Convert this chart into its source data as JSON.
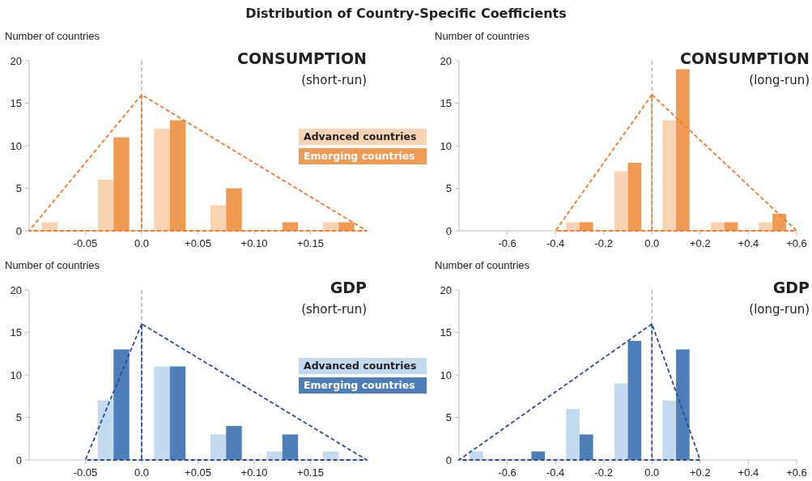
{
  "chart_data": [
    {
      "type": "bar",
      "title": "CONSUMPTION",
      "subtitle": "(short-run)",
      "ylabel": "Number of countries",
      "annotations": [
        "Distribution of Country-Specific Coefficients"
      ],
      "xlim": [
        -0.1,
        0.2
      ],
      "xticks": [
        -0.05,
        {
          "value": 0,
          "label": "0.0"
        },
        {
          "value": 0.05,
          "label": "+0.05"
        },
        {
          "value": 0.1,
          "label": "+0.10"
        },
        {
          "value": 0.15,
          "label": "+0.15"
        }
      ],
      "ylim": [
        0,
        20
      ],
      "yticks": [
        0,
        5,
        10,
        15,
        20
      ],
      "grid": false,
      "legend": "right",
      "ref_lines": [
        {
          "axis": "x",
          "value": 0,
          "color": "#a6a6a6",
          "line_style": "dashed"
        }
      ],
      "series": [
        {
          "name": "Advanced countries",
          "color": "#f9d3b2",
          "x": [
            -0.082,
            -0.032,
            0.018,
            0.068,
            0.168
          ],
          "values": [
            1,
            6,
            12,
            3,
            1
          ]
        },
        {
          "name": "Emerging countries",
          "color": "#ef9a55",
          "x": [
            -0.018,
            0.032,
            0.082,
            0.132,
            0.182
          ],
          "values": [
            11,
            13,
            5,
            1,
            1
          ]
        },
        {
          "type": "line",
          "color": "#f07a30",
          "line_style": "dashed",
          "marker": "none",
          "x": [
            0,
            -0.1,
            0.2,
            0,
            0
          ],
          "values": [
            16,
            0,
            0,
            16,
            0
          ]
        }
      ]
    },
    {
      "type": "bar",
      "title": "CONSUMPTION",
      "subtitle": "(long-run)",
      "ylabel": "Number of countries",
      "xlim": [
        -0.8,
        0.6
      ],
      "xticks": [
        -0.6,
        -0.4,
        -0.2,
        {
          "value": 0,
          "label": "0.0"
        },
        {
          "value": 0.2,
          "label": "+0.2"
        },
        {
          "value": 0.4,
          "label": "+0.4"
        },
        {
          "value": 0.6,
          "label": "+0.6"
        }
      ],
      "ylim": [
        0,
        20
      ],
      "yticks": [
        0,
        5,
        10,
        15,
        20
      ],
      "grid": false,
      "ref_lines": [
        {
          "axis": "x",
          "value": 0,
          "color": "#a6a6a6",
          "line_style": "dashed"
        }
      ],
      "series": [
        {
          "color": "#f9d3b2",
          "x": [
            -0.328,
            -0.128,
            0.072,
            0.272,
            0.472
          ],
          "values": [
            1,
            7,
            13,
            1,
            1
          ]
        },
        {
          "color": "#ef9a55",
          "x": [
            -0.272,
            -0.072,
            0.128,
            0.328,
            0.528
          ],
          "values": [
            1,
            8,
            19,
            1,
            2
          ]
        },
        {
          "type": "line",
          "color": "#f07a30",
          "line_style": "dashed",
          "marker": "none",
          "x": [
            0,
            -0.4,
            0.6,
            0,
            0
          ],
          "values": [
            16,
            0,
            0,
            16,
            0
          ]
        }
      ]
    },
    {
      "type": "bar",
      "title": "GDP",
      "subtitle": "(short-run)",
      "ylabel": "Number of countries",
      "xlim": [
        -0.1,
        0.2
      ],
      "xticks": [
        -0.05,
        {
          "value": 0,
          "label": "0.0"
        },
        {
          "value": 0.05,
          "label": "+0.05"
        },
        {
          "value": 0.1,
          "label": "+0.10"
        },
        {
          "value": 0.15,
          "label": "+0.15"
        }
      ],
      "ylim": [
        0,
        20
      ],
      "yticks": [
        0,
        5,
        10,
        15,
        20
      ],
      "grid": false,
      "legend": "right",
      "ref_lines": [
        {
          "axis": "x",
          "value": 0,
          "color": "#a6a6a6",
          "line_style": "dashed"
        }
      ],
      "series": [
        {
          "name": "Advanced countries",
          "color": "#c5d9ef",
          "x": [
            -0.032,
            0.018,
            0.068,
            0.118,
            0.168
          ],
          "values": [
            7,
            11,
            3,
            1,
            1
          ]
        },
        {
          "name": "Emerging countries",
          "color": "#4f7fb8",
          "x": [
            -0.018,
            0.032,
            0.082,
            0.132
          ],
          "values": [
            13,
            11,
            4,
            3
          ]
        },
        {
          "type": "line",
          "color": "#2e4a9e",
          "line_style": "dashed",
          "marker": "none",
          "x": [
            0,
            -0.05,
            0.2,
            0,
            0
          ],
          "values": [
            16,
            0,
            0,
            16,
            0
          ]
        }
      ]
    },
    {
      "type": "bar",
      "title": "GDP",
      "subtitle": "(long-run)",
      "ylabel": "Number of countries",
      "xlim": [
        -0.8,
        0.6
      ],
      "xticks": [
        -0.6,
        -0.4,
        -0.2,
        {
          "value": 0,
          "label": "0.0"
        },
        {
          "value": 0.2,
          "label": "+0.2"
        },
        {
          "value": 0.4,
          "label": "+0.4"
        },
        {
          "value": 0.6,
          "label": "+0.6"
        }
      ],
      "ylim": [
        0,
        20
      ],
      "yticks": [
        0,
        5,
        10,
        15,
        20
      ],
      "grid": false,
      "ref_lines": [
        {
          "axis": "x",
          "value": 0,
          "color": "#a6a6a6",
          "line_style": "dashed"
        }
      ],
      "series": [
        {
          "color": "#c5d9ef",
          "x": [
            -0.728,
            -0.328,
            -0.128,
            0.072
          ],
          "values": [
            1,
            6,
            9,
            7
          ]
        },
        {
          "color": "#4f7fb8",
          "x": [
            -0.472,
            -0.272,
            -0.072,
            0.128
          ],
          "values": [
            1,
            3,
            14,
            13
          ]
        },
        {
          "type": "line",
          "color": "#2e4a9e",
          "line_style": "dashed",
          "marker": "none",
          "x": [
            0,
            -0.8,
            0.2,
            0,
            0
          ],
          "values": [
            16,
            0,
            0,
            16,
            0
          ]
        }
      ]
    }
  ]
}
